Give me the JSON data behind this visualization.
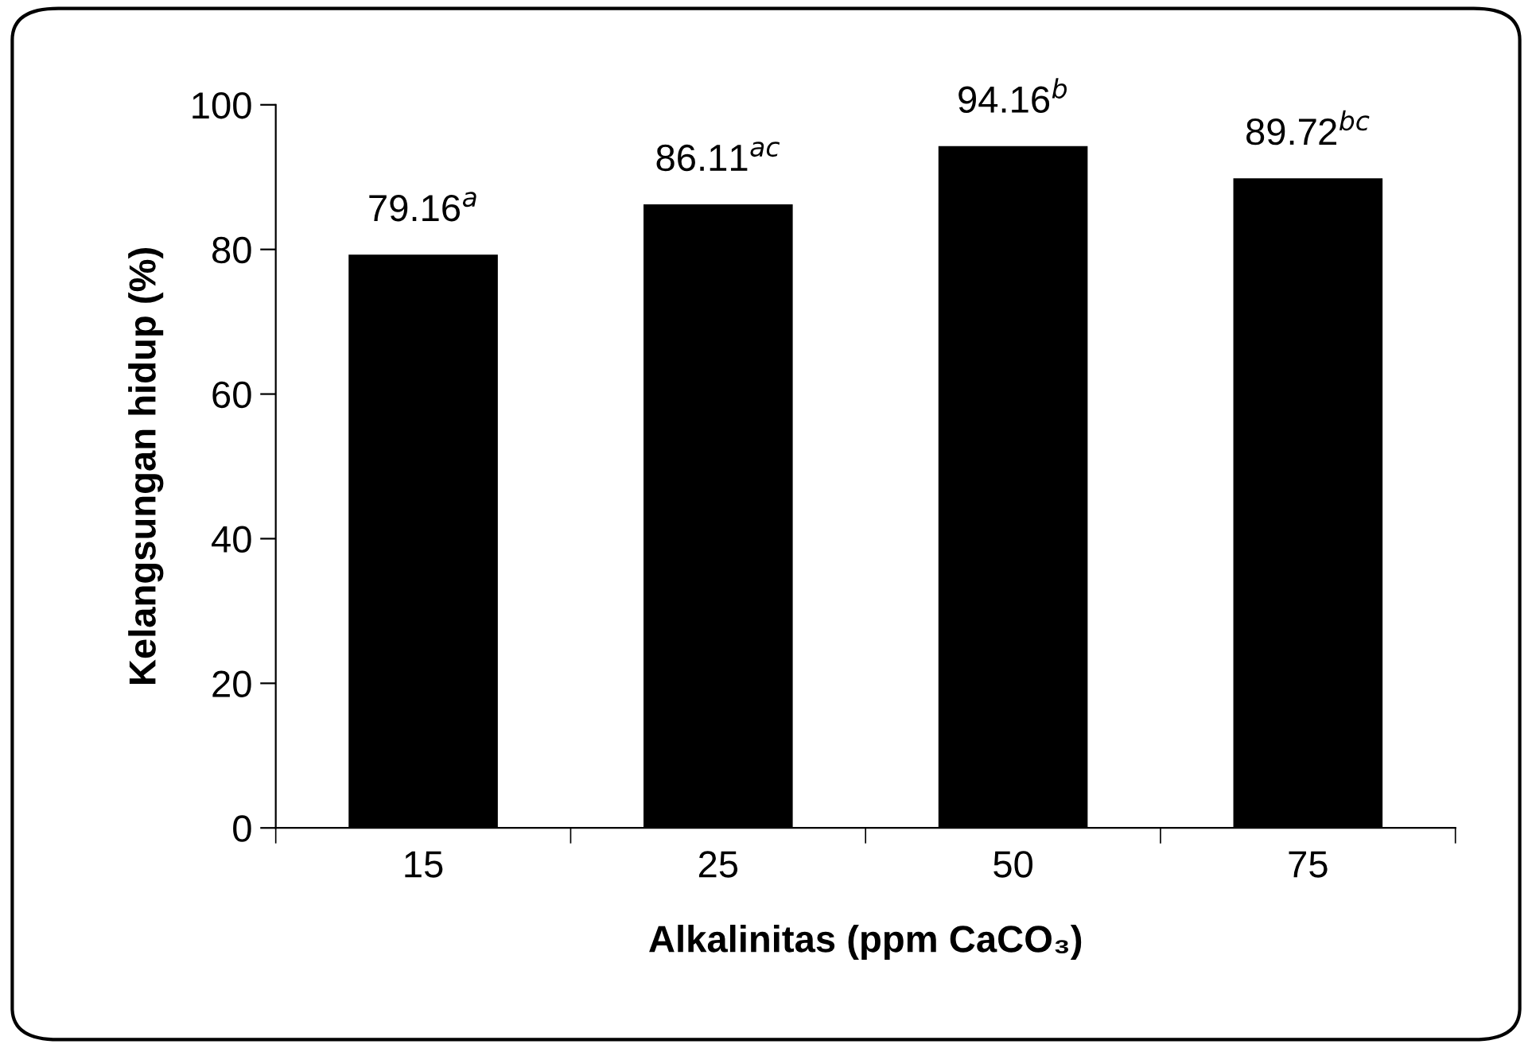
{
  "chart_data": {
    "type": "bar",
    "xlabel": "Alkalinitas (ppm CaCO₃)",
    "ylabel": "Kelangsungan hidup (%)",
    "categories": [
      "15",
      "25",
      "50",
      "75"
    ],
    "values": [
      79.16,
      86.11,
      94.16,
      89.72
    ],
    "value_labels": [
      "79.16$^{a}$",
      "86.11$^{ac}$",
      "94.16$^{b}$",
      "89.72$^{bc}$"
    ],
    "color": "#000000",
    "ylim": [
      0,
      100
    ],
    "yticks": [
      0,
      20,
      40,
      60,
      80,
      100
    ],
    "grid": false,
    "legend": false
  }
}
